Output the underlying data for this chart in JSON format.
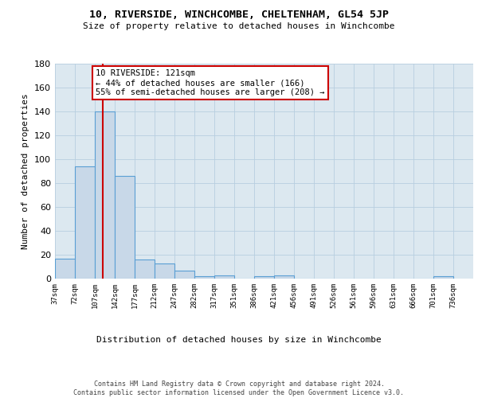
{
  "title": "10, RIVERSIDE, WINCHCOMBE, CHELTENHAM, GL54 5JP",
  "subtitle": "Size of property relative to detached houses in Winchcombe",
  "xlabel": "Distribution of detached houses by size in Winchcombe",
  "ylabel": "Number of detached properties",
  "bar_values": [
    17,
    94,
    140,
    86,
    16,
    13,
    7,
    2,
    3,
    0,
    2,
    3,
    0,
    0,
    0,
    0,
    0,
    0,
    0,
    2
  ],
  "bin_labels": [
    "37sqm",
    "72sqm",
    "107sqm",
    "142sqm",
    "177sqm",
    "212sqm",
    "247sqm",
    "282sqm",
    "317sqm",
    "351sqm",
    "386sqm",
    "421sqm",
    "456sqm",
    "491sqm",
    "526sqm",
    "561sqm",
    "596sqm",
    "631sqm",
    "666sqm",
    "701sqm",
    "736sqm"
  ],
  "bin_edges": [
    37,
    72,
    107,
    142,
    177,
    212,
    247,
    282,
    317,
    351,
    386,
    421,
    456,
    491,
    526,
    561,
    596,
    631,
    666,
    701,
    736
  ],
  "bar_color": "#c8d8e8",
  "bar_edge_color": "#5a9fd4",
  "grid_color": "#b8cee0",
  "background_color": "#dce8f0",
  "property_sqm": 121,
  "property_line_color": "#cc0000",
  "annotation_text": "10 RIVERSIDE: 121sqm\n← 44% of detached houses are smaller (166)\n55% of semi-detached houses are larger (208) →",
  "annotation_box_color": "#ffffff",
  "annotation_box_edge_color": "#cc0000",
  "footer_text": "Contains HM Land Registry data © Crown copyright and database right 2024.\nContains public sector information licensed under the Open Government Licence v3.0.",
  "ylim": [
    0,
    180
  ],
  "yticks": [
    0,
    20,
    40,
    60,
    80,
    100,
    120,
    140,
    160,
    180
  ]
}
